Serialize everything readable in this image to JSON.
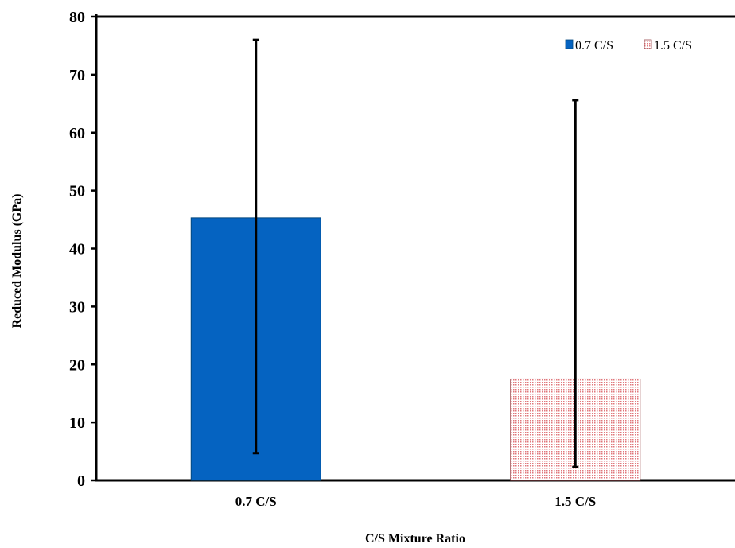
{
  "chart_data": {
    "type": "bar",
    "title": "",
    "xlabel": "C/S Mixture Ratio",
    "ylabel": "Reduced Modulus (GPa)",
    "ylim": [
      0,
      80
    ],
    "yticks": [
      "0",
      "10",
      "20",
      "30",
      "40",
      "50",
      "60",
      "70",
      "80"
    ],
    "categories": [
      "0.7 C/S",
      "1.5 C/S"
    ],
    "series": [
      {
        "name": "0.7 C/S",
        "category": "0.7 C/S",
        "value": 45.3,
        "error_low": 4.7,
        "error_high": 76.0,
        "color": "#0563C1",
        "pattern": "solid"
      },
      {
        "name": "1.5 C/S",
        "category": "1.5 C/S",
        "value": 17.5,
        "error_low": 2.3,
        "error_high": 65.6,
        "color": "#F4B6B6",
        "pattern": "dotted"
      }
    ],
    "legend_position": "top-right",
    "grid": false
  }
}
